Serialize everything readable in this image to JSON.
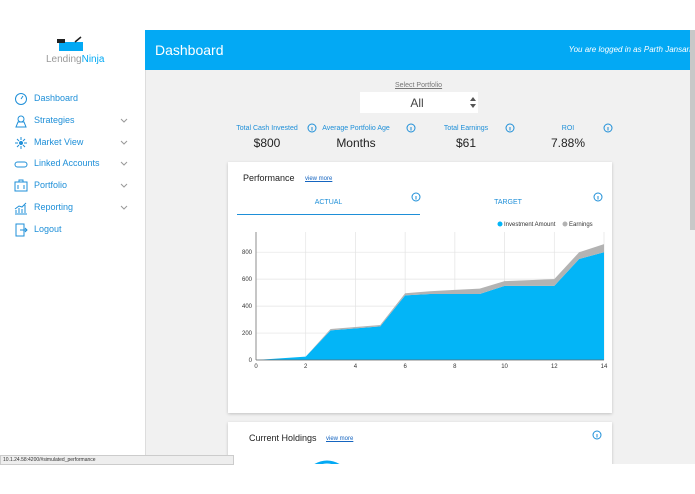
{
  "sidebar": {
    "logo": {
      "first": "Lending",
      "second": "Ninja"
    },
    "menu": [
      "Dashboard",
      "Strategies",
      "Market View",
      "Linked Accounts",
      "Portfolio",
      "Reporting",
      "Logout"
    ]
  },
  "header": {
    "title": "Dashboard",
    "login_text": "You are logged in as",
    "user": "Parth Jansari"
  },
  "portfolio_select": {
    "label": "Select Portfolio",
    "value": "All"
  },
  "stats": [
    {
      "label": "Total Cash Invested",
      "value": "$800"
    },
    {
      "label": "Average Portfolio Age",
      "value": "Months"
    },
    {
      "label": "Total Earnings",
      "value": "$61"
    },
    {
      "label": "ROI",
      "value": "7.88%"
    }
  ],
  "performance": {
    "title": "Performance",
    "link": "view more",
    "tabs": [
      "ACTUAL",
      "TARGET"
    ],
    "chart": {
      "type": "area",
      "stacked": true,
      "x": [
        0,
        2,
        3,
        5,
        6,
        7,
        8,
        9,
        10,
        12,
        13,
        14
      ],
      "series": [
        {
          "name": "Investment Amount",
          "color": "#03b5f7",
          "values": [
            0,
            25,
            220,
            250,
            480,
            490,
            490,
            490,
            550,
            550,
            750,
            800
          ]
        },
        {
          "name": "Earnings",
          "color": "#b3b3b3",
          "values": [
            0,
            0,
            10,
            10,
            15,
            20,
            30,
            40,
            35,
            50,
            50,
            60
          ]
        }
      ],
      "xlim": [
        0,
        14
      ],
      "xticks": [
        0,
        2,
        4,
        6,
        8,
        10,
        12,
        14
      ],
      "ylim": [
        0,
        950
      ],
      "yticks": [
        0,
        200,
        400,
        600,
        800
      ],
      "grid": true
    }
  },
  "holdings": {
    "title": "Current Holdings",
    "link": "view more"
  },
  "status_bar": "10.1.24.58:4200/#simulated_performance"
}
